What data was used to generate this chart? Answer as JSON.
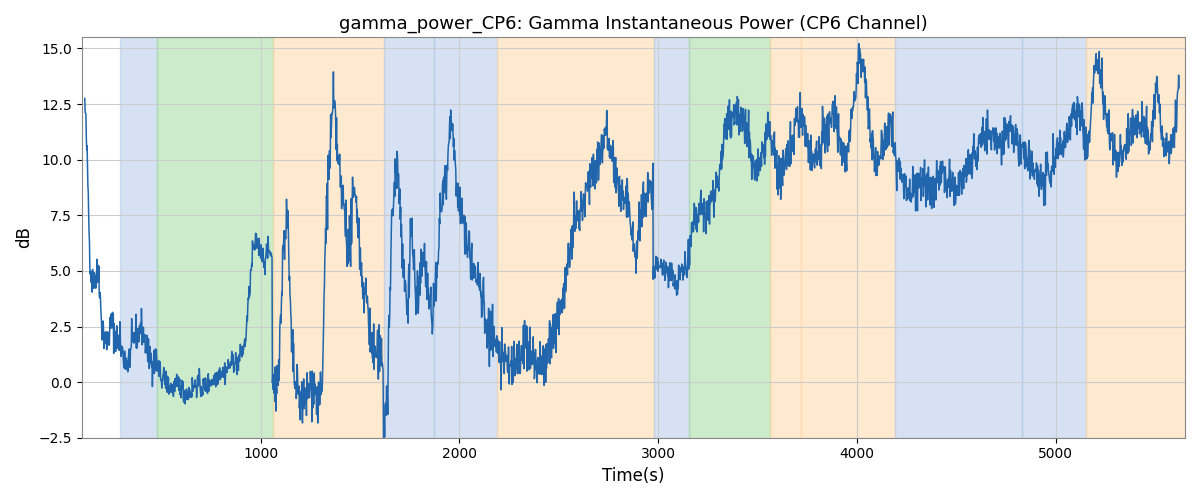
{
  "title": "gamma_power_CP6: Gamma Instantaneous Power (CP6 Channel)",
  "xlabel": "Time(s)",
  "ylabel": "dB",
  "xlim": [
    100,
    5650
  ],
  "ylim": [
    -2.5,
    15.5
  ],
  "yticks": [
    -2.5,
    0.0,
    2.5,
    5.0,
    7.5,
    10.0,
    12.5,
    15.0
  ],
  "xticks": [
    1000,
    2000,
    3000,
    4000,
    5000
  ],
  "line_color": "#2166ac",
  "line_width": 1.1,
  "grid_color": "#cccccc",
  "bands": [
    {
      "xmin": 290,
      "xmax": 480,
      "color": "#aec6e8",
      "alpha": 0.5
    },
    {
      "xmin": 480,
      "xmax": 1060,
      "color": "#98d898",
      "alpha": 0.5
    },
    {
      "xmin": 1060,
      "xmax": 1620,
      "color": "#ffd5a0",
      "alpha": 0.5
    },
    {
      "xmin": 1620,
      "xmax": 1870,
      "color": "#aec6e8",
      "alpha": 0.5
    },
    {
      "xmin": 1870,
      "xmax": 2190,
      "color": "#aec6e8",
      "alpha": 0.5
    },
    {
      "xmin": 2190,
      "xmax": 2980,
      "color": "#ffd5a0",
      "alpha": 0.5
    },
    {
      "xmin": 2980,
      "xmax": 3155,
      "color": "#aec6e8",
      "alpha": 0.5
    },
    {
      "xmin": 3155,
      "xmax": 3560,
      "color": "#98d898",
      "alpha": 0.5
    },
    {
      "xmin": 3560,
      "xmax": 3720,
      "color": "#ffd5a0",
      "alpha": 0.5
    },
    {
      "xmin": 3720,
      "xmax": 4190,
      "color": "#ffd5a0",
      "alpha": 0.5
    },
    {
      "xmin": 4190,
      "xmax": 4830,
      "color": "#aec6e8",
      "alpha": 0.5
    },
    {
      "xmin": 4830,
      "xmax": 5150,
      "color": "#aec6e8",
      "alpha": 0.5
    },
    {
      "xmin": 5150,
      "xmax": 5650,
      "color": "#ffd5a0",
      "alpha": 0.5
    }
  ],
  "seed": 42
}
